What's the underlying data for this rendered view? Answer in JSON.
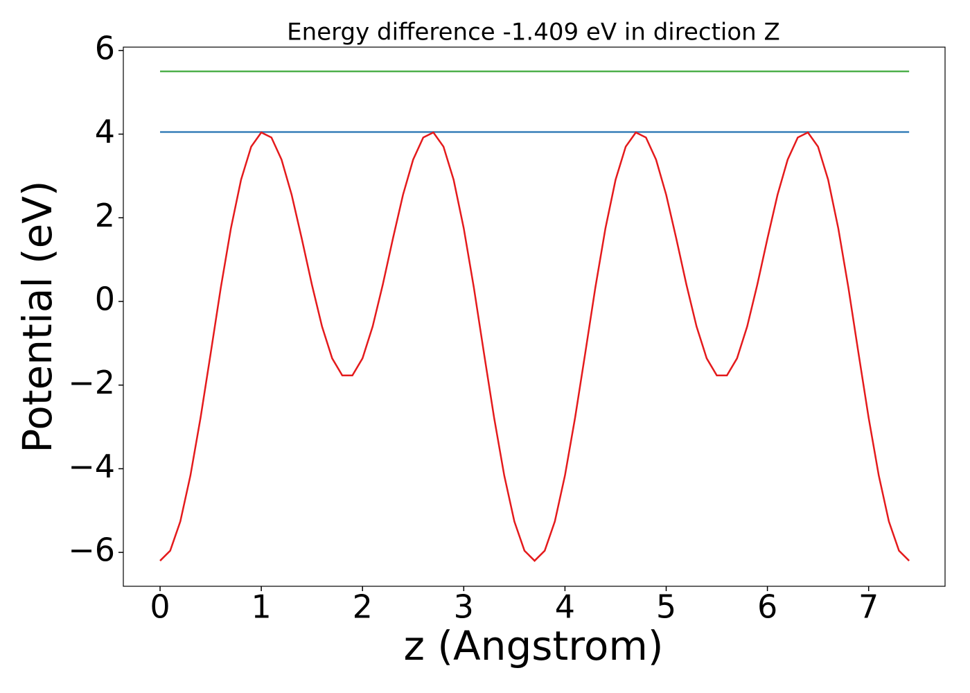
{
  "chart_data": {
    "type": "line",
    "title": "Energy difference -1.409 eV in direction Z",
    "xlabel": "z (Angstrom)",
    "ylabel": "Potential (eV)",
    "xlim": [
      -0.363,
      7.755
    ],
    "ylim": [
      -6.81,
      6.08
    ],
    "xticks": [
      0,
      1,
      2,
      3,
      4,
      5,
      6,
      7
    ],
    "yticks": [
      {
        "value": -6,
        "label": "−6"
      },
      {
        "value": -4,
        "label": "−4"
      },
      {
        "value": -2,
        "label": "−2"
      },
      0,
      2,
      4,
      6
    ],
    "grid": false,
    "series": [
      {
        "color": "#e41a1c",
        "x": [
          0,
          0.1,
          0.2,
          0.3,
          0.4,
          0.5,
          0.6,
          0.7,
          0.8,
          0.9,
          1.0,
          1.1,
          1.2,
          1.3,
          1.4,
          1.5,
          1.6,
          1.7,
          1.8,
          1.9,
          2.0,
          2.1,
          2.2,
          2.3,
          2.4,
          2.5,
          2.6,
          2.7,
          2.8,
          2.9,
          3.0,
          3.1,
          3.2,
          3.3,
          3.4,
          3.5,
          3.6,
          3.7,
          3.8,
          3.9,
          4.0,
          4.1,
          4.2,
          4.3,
          4.4,
          4.5,
          4.6,
          4.7,
          4.8,
          4.9,
          5.0,
          5.1,
          5.2,
          5.3,
          5.4,
          5.5,
          5.6,
          5.7,
          5.8,
          5.9,
          6.0,
          6.1,
          6.2,
          6.3,
          6.4,
          6.5,
          6.6,
          6.7,
          6.8,
          6.9,
          7.0,
          7.1,
          7.2,
          7.3,
          7.4
        ],
        "values": [
          -6.2,
          -5.96,
          -5.26,
          -4.16,
          -2.78,
          -1.24,
          0.33,
          1.75,
          2.91,
          3.7,
          4.04,
          3.92,
          3.39,
          2.55,
          1.5,
          0.4,
          -0.6,
          -1.36,
          -1.77,
          -1.77,
          -1.36,
          -0.6,
          0.4,
          1.5,
          2.55,
          3.39,
          3.92,
          4.04,
          3.7,
          2.91,
          1.75,
          0.33,
          -1.24,
          -2.78,
          -4.16,
          -5.26,
          -5.96,
          -6.2,
          -5.96,
          -5.26,
          -4.16,
          -2.78,
          -1.24,
          0.33,
          1.75,
          2.91,
          3.7,
          4.04,
          3.92,
          3.39,
          2.55,
          1.5,
          0.4,
          -0.6,
          -1.36,
          -1.77,
          -1.77,
          -1.36,
          -0.6,
          0.4,
          1.5,
          2.55,
          3.39,
          3.92,
          4.04,
          3.7,
          2.91,
          1.75,
          0.33,
          -1.24,
          -2.78,
          -4.16,
          -5.26,
          -5.96,
          -6.2
        ]
      },
      {
        "color": "#377eb8",
        "x": [
          0,
          7.4
        ],
        "values": [
          4.05,
          4.05
        ]
      },
      {
        "color": "#4daf4a",
        "x": [
          0,
          7.4
        ],
        "values": [
          5.5,
          5.5
        ]
      }
    ]
  }
}
